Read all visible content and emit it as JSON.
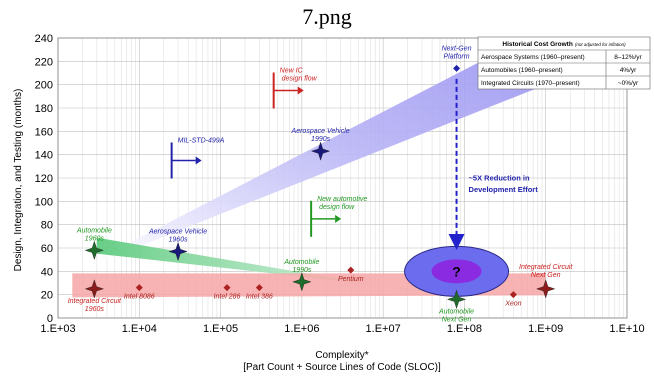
{
  "page_title": "7.png",
  "colors": {
    "blue": "#2222aa",
    "red": "#cc2222",
    "green": "#229922",
    "dark_red": "#aa2222",
    "star_dark": "#224422"
  },
  "chart_data": {
    "type": "scatter",
    "title": "",
    "ylabel": "Design, Integration, and Testing (months)",
    "xlabel": "Complexity*",
    "xlabel_sub": "[Part Count + Source Lines of Code (SLOC)]",
    "xscale": "log",
    "xlim": [
      1000,
      10000000000
    ],
    "ylim": [
      0,
      240
    ],
    "grid": true,
    "x_ticks": [
      "1.E+03",
      "1.E+04",
      "1.E+05",
      "1.E+06",
      "1.E+07",
      "1.E+08",
      "1.E+09",
      "1.E+10"
    ],
    "y_ticks": [
      "0",
      "20",
      "40",
      "60",
      "80",
      "100",
      "120",
      "140",
      "160",
      "180",
      "200",
      "220",
      "240"
    ],
    "bands": [
      {
        "color": "blue",
        "points": [
          [
            3000,
            50
          ],
          [
            80000000,
            175
          ],
          [
            1000000000,
            200
          ],
          [
            300000000,
            230
          ]
        ]
      },
      {
        "color": "green",
        "points": [
          [
            3000,
            62
          ],
          [
            150000000,
            15
          ]
        ]
      },
      {
        "color": "red",
        "points": [
          [
            1500,
            28
          ],
          [
            1000000000,
            28
          ]
        ]
      }
    ],
    "points": [
      {
        "label": "Automobile",
        "label2": "1960s",
        "x": 2800,
        "y": 58,
        "color": "green",
        "marker": "star",
        "label_pos": "above"
      },
      {
        "label": "Integrated Circuit",
        "label2": "1960s",
        "x": 2800,
        "y": 25,
        "color": "red",
        "marker": "star",
        "label_pos": "below"
      },
      {
        "label": "Aerospace Vehicle",
        "label2": "1960s",
        "x": 30000,
        "y": 57,
        "color": "blue",
        "marker": "star",
        "label_pos": "above"
      },
      {
        "label": "Aerospace Vehicle",
        "label2": "1990s",
        "x": 1700000,
        "y": 143,
        "color": "blue",
        "marker": "star",
        "label_pos": "above"
      },
      {
        "label": "Automobile",
        "label2": "1990s",
        "x": 1000000,
        "y": 31,
        "color": "green",
        "marker": "star",
        "label_pos": "above"
      },
      {
        "label": "Automobile",
        "label2": "Next Gen",
        "x": 80000000,
        "y": 16,
        "color": "green",
        "marker": "star",
        "label_pos": "below"
      },
      {
        "label": "Integrated Circuit",
        "label2": "Next Gen",
        "x": 1000000000,
        "y": 25,
        "color": "red",
        "marker": "star",
        "label_pos": "above"
      },
      {
        "label": "Intel 8086",
        "label2": "",
        "x": 10000,
        "y": 26,
        "color": "dark_red",
        "marker": "diamond",
        "label_pos": "below"
      },
      {
        "label": "Intel 286",
        "label2": "",
        "x": 120000,
        "y": 26,
        "color": "dark_red",
        "marker": "diamond",
        "label_pos": "below"
      },
      {
        "label": "Intel 386",
        "label2": "",
        "x": 300000,
        "y": 26,
        "color": "dark_red",
        "marker": "diamond",
        "label_pos": "below"
      },
      {
        "label": "Pentium",
        "label2": "",
        "x": 4000000,
        "y": 41,
        "color": "dark_red",
        "marker": "diamond",
        "label_pos": "below"
      },
      {
        "label": "Xeon",
        "label2": "",
        "x": 400000000,
        "y": 20,
        "color": "dark_red",
        "marker": "diamond",
        "label_pos": "below"
      },
      {
        "label": "Next-Gen",
        "label2": "Platform",
        "x": 80000000,
        "y": 214,
        "color": "blue",
        "marker": "diamond",
        "label_pos": "above"
      }
    ],
    "flags": [
      {
        "label": "MIL-STD-499A",
        "x": 25000,
        "y": 135,
        "color": "blue"
      },
      {
        "label": "New IC",
        "label2": "design flow",
        "x": 450000,
        "y": 195,
        "color": "red"
      },
      {
        "label": "New automotive",
        "label2": "design flow",
        "x": 1300000,
        "y": 85,
        "color": "green"
      }
    ],
    "reduction": {
      "label": "~5X Reduction in",
      "label2": "Development Effort",
      "x": 80000000,
      "y_from": 205,
      "y_to": 60
    },
    "future": {
      "label": "?",
      "x": 80000000,
      "y": 40
    }
  },
  "cost_table": {
    "title": "Historical Cost Growth",
    "title_note": "(not adjusted for inflation)",
    "rows": [
      {
        "name": "Aerospace Systems (1960–present)",
        "value": "8–12%/yr"
      },
      {
        "name": "Automobiles (1960–present)",
        "value": "4%/yr"
      },
      {
        "name": "Integrated Circuits (1970–present)",
        "value": "~0%/yr"
      }
    ]
  }
}
